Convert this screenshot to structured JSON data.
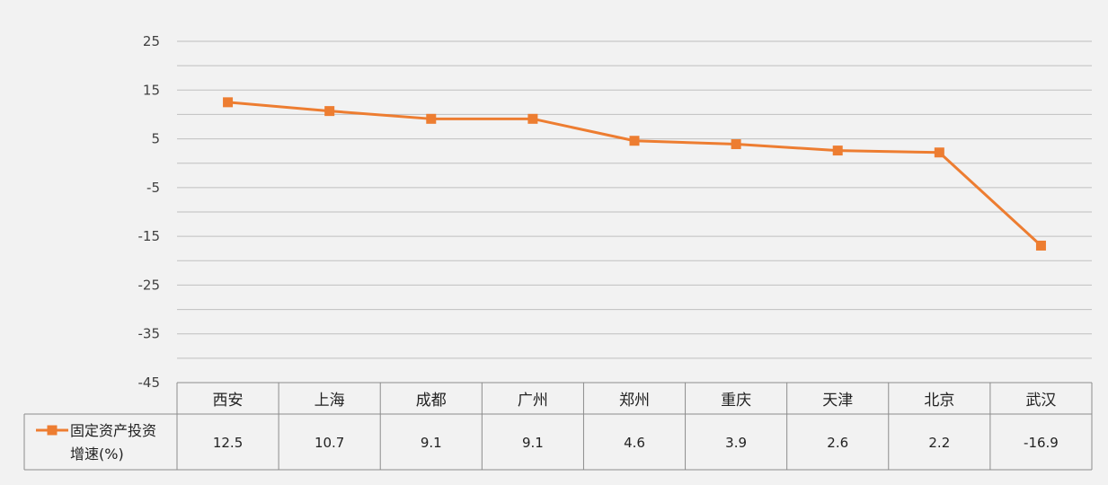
{
  "chart_data": {
    "type": "line",
    "categories": [
      "西安",
      "上海",
      "成都",
      "广州",
      "郑州",
      "重庆",
      "天津",
      "北京",
      "武汉"
    ],
    "series": [
      {
        "name": "固定资产投资增速(%)",
        "name_lines": [
          "固定资产投资",
          "增速(%)"
        ],
        "values": [
          12.5,
          10.7,
          9.1,
          9.1,
          4.6,
          3.9,
          2.6,
          2.2,
          -16.9
        ],
        "value_labels": [
          "12.5",
          "10.7",
          "9.1",
          "9.1",
          "4.6",
          "3.9",
          "2.6",
          "2.2",
          "-16.9"
        ]
      }
    ],
    "yticks": [
      25,
      15,
      5,
      -5,
      -15,
      -25,
      -35,
      -45
    ],
    "ylim": [
      -45,
      25
    ],
    "grid": true,
    "legend": "bottom-left data table",
    "colors": {
      "line": "#ed7d31",
      "marker": "#ed7d31",
      "grid": "#bfbfbf",
      "table_border": "#8c8c8c"
    }
  }
}
